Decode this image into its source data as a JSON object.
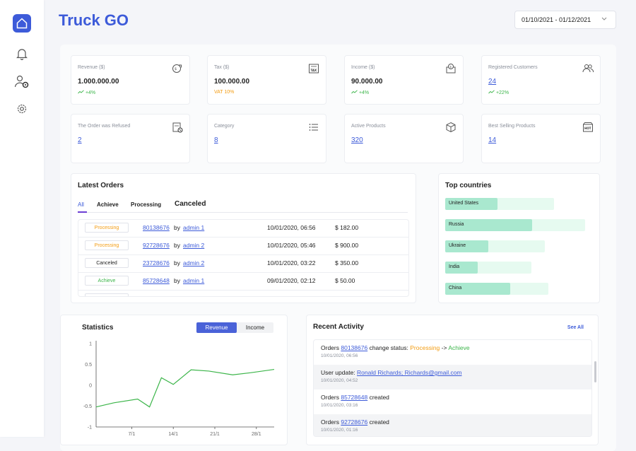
{
  "brand": "Truck GO",
  "date_range": "01/10/2021 - 01/12/2021",
  "sidebar": [
    {
      "icon": "home-icon"
    },
    {
      "icon": "bell-icon"
    },
    {
      "icon": "user-settings-icon"
    },
    {
      "icon": "gear-icon"
    }
  ],
  "stats": [
    {
      "label": "Revenue ($)",
      "value": "1.000.000.00",
      "change": "+4%",
      "icon": "revenue-icon"
    },
    {
      "label": "Tax ($)",
      "value": "100.000.00",
      "change": "VAT 10%",
      "icon": "tax-icon"
    },
    {
      "label": "Income ($)",
      "value": "90.000.00",
      "change": "+4%",
      "icon": "income-icon"
    },
    {
      "label": "Registered Customers",
      "value": "24",
      "change": "+22%",
      "icon": "customers-icon"
    },
    {
      "label": "The Order was Refused",
      "value": "2",
      "icon": "refused-order-icon"
    },
    {
      "label": "Category",
      "value": "8",
      "icon": "category-list-icon"
    },
    {
      "label": "Active Products",
      "value": "320",
      "icon": "box-icon"
    },
    {
      "label": "Best Selling Products",
      "value": "14",
      "icon": "hot-product-icon"
    }
  ],
  "latest_orders": {
    "title": "Latest Orders",
    "tabs": [
      "All",
      "Achieve",
      "Processing",
      "Canceled"
    ],
    "by": "by",
    "rows": [
      {
        "status": "Processing",
        "id": "80138676",
        "admin": "admin 1",
        "date": "10/01/2020, 06:56",
        "price": "$ 182.00"
      },
      {
        "status": "Processing",
        "id": "92728676",
        "admin": "admin 2",
        "date": "10/01/2020, 05:46",
        "price": "$ 900.00"
      },
      {
        "status": "Canceled",
        "id": "23728676",
        "admin": "admin 2",
        "date": "10/01/2020, 03:22",
        "price": "$ 350.00"
      },
      {
        "status": "Achieve",
        "id": "85728648",
        "admin": "admin 1",
        "date": "09/01/2020, 02:12",
        "price": "$ 50.00"
      }
    ],
    "status_colors": {
      "Processing": "#f39c12",
      "Canceled": "#222222",
      "Achieve": "#3cb54a"
    }
  },
  "top_countries": {
    "title": "Top countries",
    "items": [
      {
        "name": "United States",
        "level": 0.48
      },
      {
        "name": "Russia",
        "level": 0.62
      },
      {
        "name": "Ukraine",
        "level": 0.43
      },
      {
        "name": "India",
        "level": 0.38
      },
      {
        "name": "China",
        "level": 0.63
      }
    ]
  },
  "statistics": {
    "title": "Statistics",
    "toggle": [
      "Revenue",
      "Income"
    ]
  },
  "chart_data": {
    "type": "line",
    "x": [
      1,
      4,
      8,
      10,
      12,
      14,
      17,
      20,
      24,
      27,
      31
    ],
    "series": [
      {
        "values": [
          -0.52,
          -0.42,
          -0.33,
          -0.52,
          0.18,
          0.02,
          0.37,
          0.34,
          0.25,
          0.3,
          0.38
        ]
      }
    ],
    "xticks": [
      "7/1",
      "14/1",
      "21/1",
      "28/1"
    ],
    "xtick_values": [
      7,
      14,
      21,
      28
    ],
    "yticks": [
      "1",
      "0.5",
      "0",
      "-0.5",
      "-1"
    ],
    "ylim": [
      -1,
      1
    ],
    "xlim": [
      1,
      31
    ],
    "color": "#3cb54a"
  },
  "recent_activity": {
    "title": "Recent Activity",
    "see_all": "See All",
    "items": [
      {
        "prefix": "Orders",
        "link": "80138676",
        "mid": "change status:",
        "status_from": "Processing",
        "arrow": "->",
        "status_to": "Achieve",
        "time": "10/01/2020, 06:56"
      },
      {
        "prefix": "User update:",
        "link": "Ronald Richards; Richards@gmail.com",
        "time": "10/01/2020, 04:52"
      },
      {
        "prefix": "Orders",
        "link": "85728648",
        "suffix": "created",
        "time": "10/01/2020, 03:16"
      },
      {
        "prefix": "Orders",
        "link": "92728676",
        "suffix": "created",
        "time": "10/01/2020, 01:16"
      }
    ]
  }
}
